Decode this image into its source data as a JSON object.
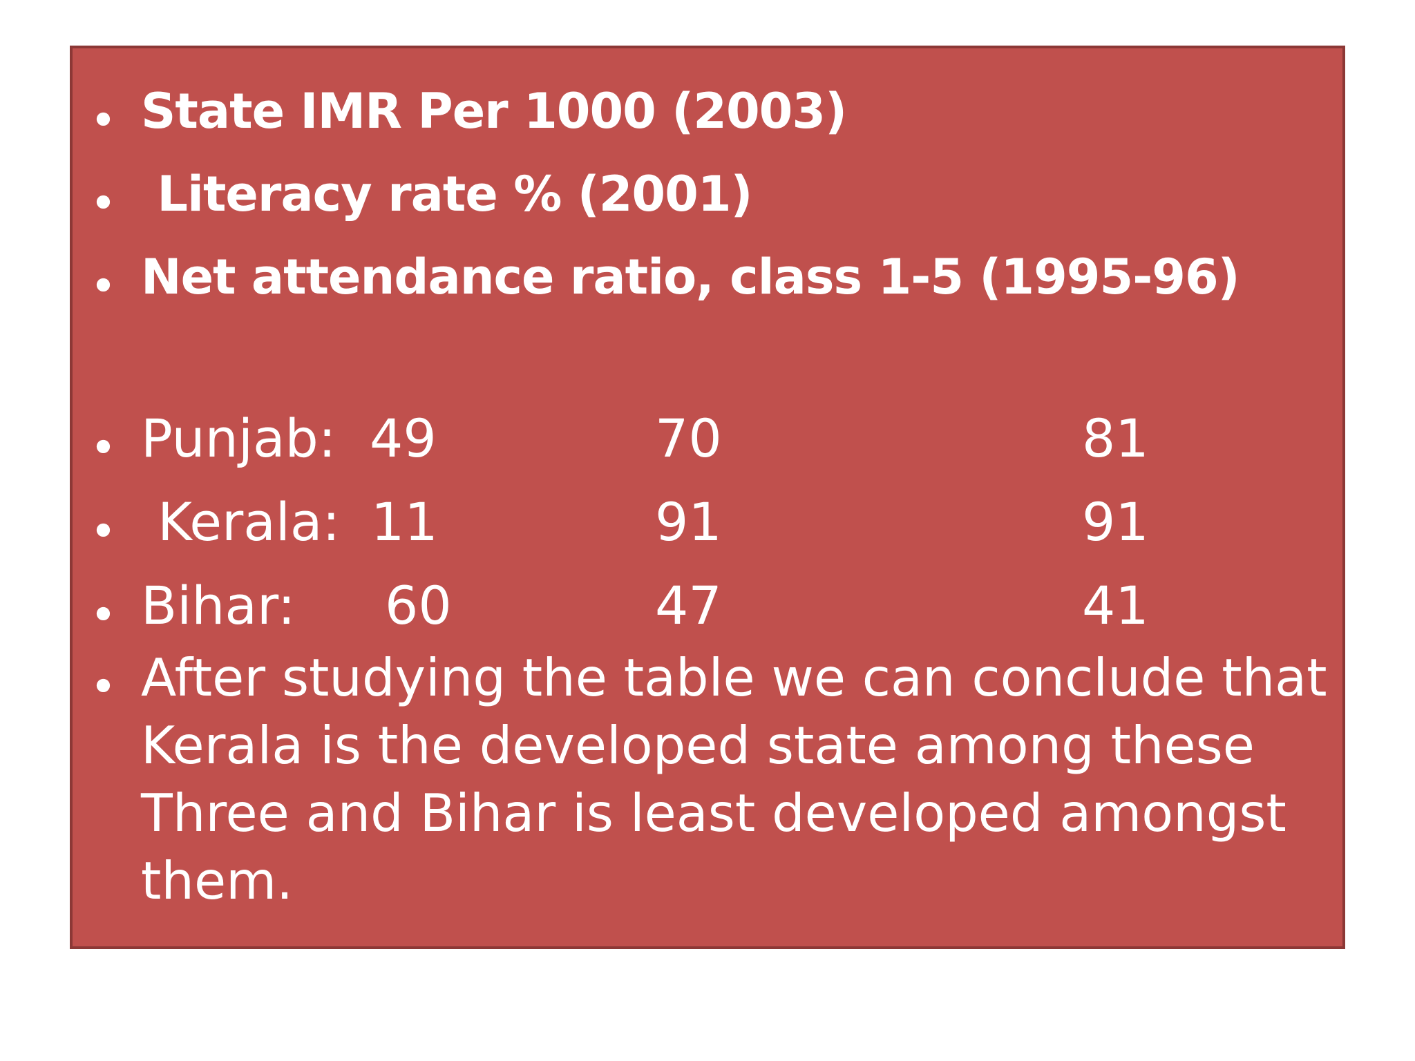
{
  "headings": [
    "State IMR Per 1000 (2003)",
    " Literacy rate % (2001)",
    "Net attendance ratio, class 1-5 (1995-96)"
  ],
  "bullet_char": "•",
  "rows": [
    {
      "state": "Punjab:",
      "imr": "49",
      "literacy": "70",
      "attendance": "81"
    },
    {
      "state": " Kerala:",
      "imr": "11",
      "literacy": "91",
      "attendance": "91"
    },
    {
      "state": "Bihar:",
      "imr": "60",
      "literacy": "47",
      "attendance": "41"
    }
  ],
  "conclusion": "After studying the table we can conclude that Kerala is the developed state among these Three and Bihar is least developed amongst them.",
  "colors": {
    "box_fill": "#c0504d",
    "box_border": "#8c3836",
    "text": "#ffffff"
  }
}
